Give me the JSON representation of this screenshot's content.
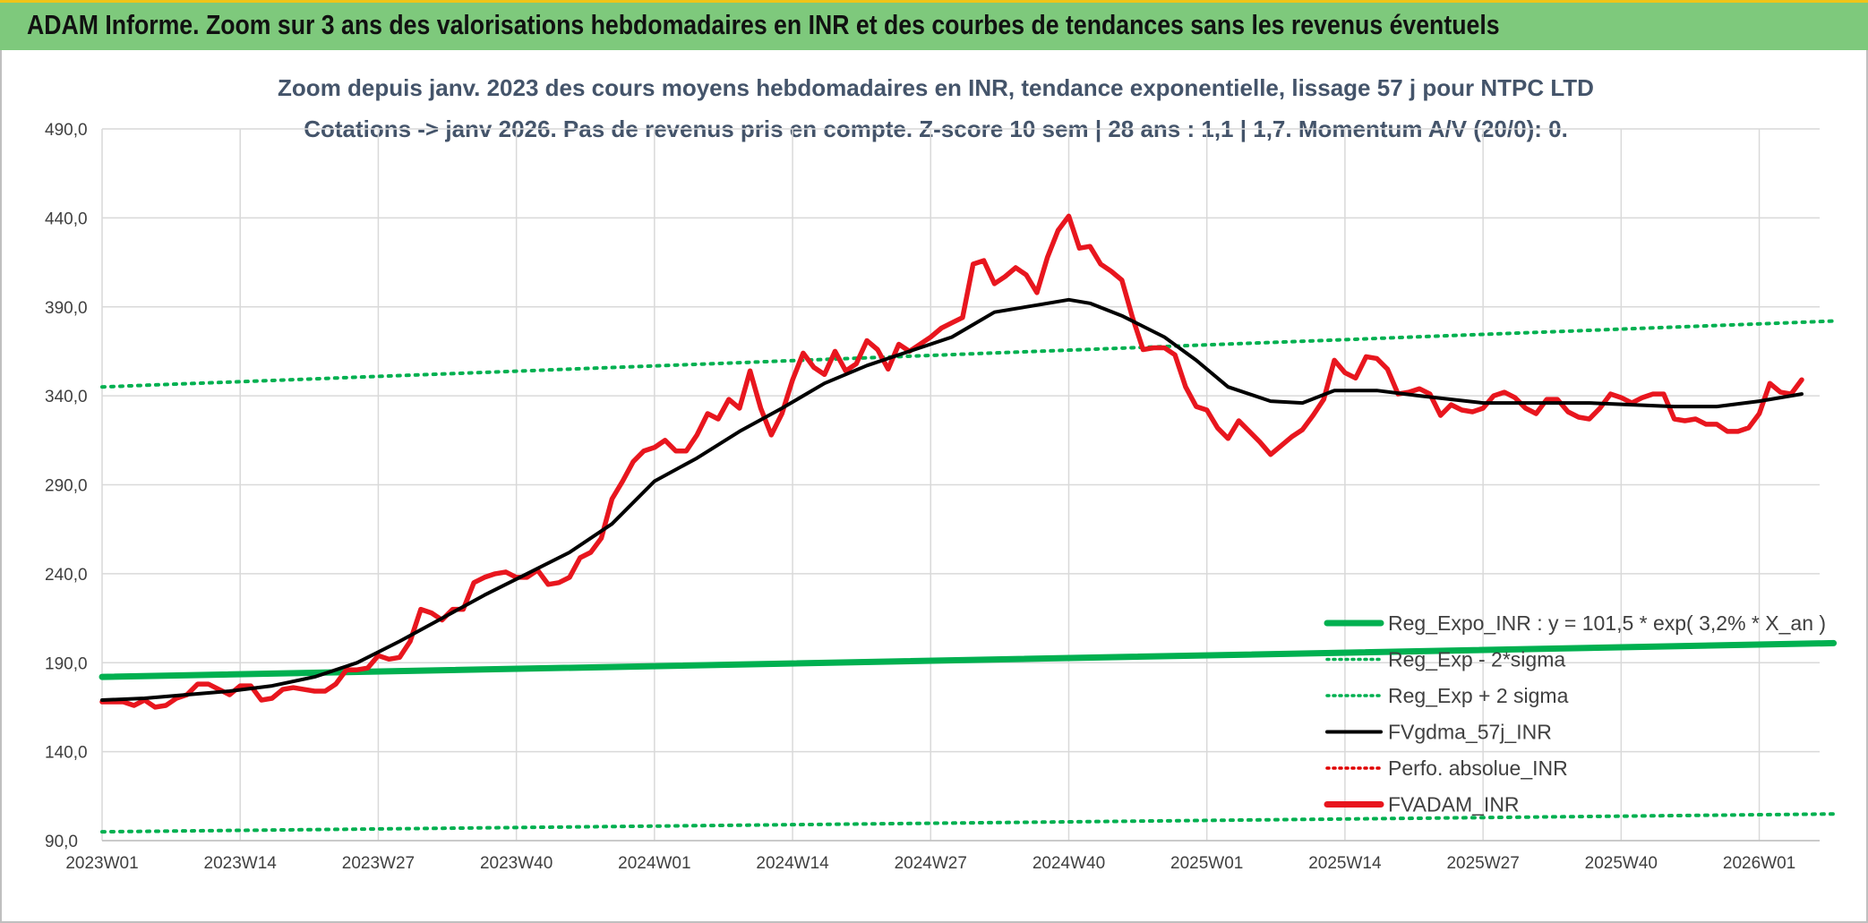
{
  "header": {
    "title": "ADAM Informe. Zoom sur 3 ans des valorisations hebdomadaires en INR et des courbes de tendances sans les revenus éventuels"
  },
  "chart_data": {
    "type": "line",
    "title_line1": "Zoom depuis janv. 2023 des cours moyens hebdomadaires en INR, tendance exponentielle, lissage 57 j pour NTPC LTD",
    "title_line2": "Cotations -> janv 2026. Pas de revenus pris en compte. Z-score 10 sem | 28 ans : 1,1  | 1,7. Momentum A/V (20/0): 0.",
    "ylim": [
      90,
      490
    ],
    "y_ticks": [
      "490,0",
      "440,0",
      "390,0",
      "340,0",
      "290,0",
      "240,0",
      "190,0",
      "140,0",
      "90,0"
    ],
    "y_tick_values": [
      490,
      440,
      390,
      340,
      290,
      240,
      190,
      140,
      90
    ],
    "x_range": [
      0,
      163
    ],
    "x_ticks": [
      "2023W01",
      "2023W14",
      "2023W27",
      "2023W40",
      "2024W01",
      "2024W14",
      "2024W27",
      "2024W40",
      "2025W01",
      "2025W14",
      "2025W27",
      "2025W40",
      "2026W01"
    ],
    "x_tick_positions": [
      0,
      13,
      26,
      39,
      52,
      65,
      78,
      91,
      104,
      117,
      130,
      143,
      156
    ],
    "legend": [
      {
        "label": "Reg_Expo_INR : y = 101,5 * exp( 3,2% *  X_an )",
        "color": "#00b050",
        "style": "solid-thick"
      },
      {
        "label": "Reg_Exp - 2*sigma",
        "color": "#00b050",
        "style": "dotted"
      },
      {
        "label": "Reg_Exp + 2 sigma",
        "color": "#00b050",
        "style": "dotted"
      },
      {
        "label": "FVgdma_57j_INR",
        "color": "#000000",
        "style": "solid"
      },
      {
        "label": "Perfo. absolue_INR",
        "color": "#e00000",
        "style": "dotted"
      },
      {
        "label": "FVADAM_INR",
        "color": "#e8161e",
        "style": "solid-thick"
      }
    ],
    "series": [
      {
        "name": "Reg_Expo_INR",
        "color": "#00b050",
        "points": [
          [
            0,
            182
          ],
          [
            163,
            201
          ]
        ]
      },
      {
        "name": "Reg_Exp - 2*sigma",
        "color": "#00b050",
        "points": [
          [
            0,
            95
          ],
          [
            163,
            105
          ]
        ]
      },
      {
        "name": "Reg_Exp + 2 sigma",
        "color": "#00b050",
        "points": [
          [
            0,
            345
          ],
          [
            163,
            382
          ]
        ]
      },
      {
        "name": "FVgdma_57j_INR",
        "color": "#000000",
        "points": [
          [
            0,
            169
          ],
          [
            4,
            170
          ],
          [
            8,
            172
          ],
          [
            12,
            174
          ],
          [
            16,
            177
          ],
          [
            20,
            182
          ],
          [
            24,
            190
          ],
          [
            28,
            202
          ],
          [
            32,
            215
          ],
          [
            36,
            228
          ],
          [
            40,
            240
          ],
          [
            44,
            252
          ],
          [
            48,
            268
          ],
          [
            52,
            292
          ],
          [
            56,
            305
          ],
          [
            60,
            320
          ],
          [
            64,
            333
          ],
          [
            68,
            347
          ],
          [
            72,
            357
          ],
          [
            76,
            365
          ],
          [
            80,
            373
          ],
          [
            82,
            380
          ],
          [
            84,
            387
          ],
          [
            88,
            391
          ],
          [
            91,
            394
          ],
          [
            93,
            392
          ],
          [
            96,
            385
          ],
          [
            100,
            373
          ],
          [
            103,
            360
          ],
          [
            106,
            345
          ],
          [
            110,
            337
          ],
          [
            113,
            336
          ],
          [
            116,
            343
          ],
          [
            120,
            343
          ],
          [
            124,
            340
          ],
          [
            130,
            336
          ],
          [
            136,
            336
          ],
          [
            140,
            336
          ],
          [
            144,
            335
          ],
          [
            148,
            334
          ],
          [
            152,
            334
          ],
          [
            156,
            337
          ],
          [
            160,
            341
          ]
        ]
      },
      {
        "name": "FVADAM_INR",
        "color": "#e8161e",
        "points": [
          [
            0,
            168
          ],
          [
            1,
            168
          ],
          [
            2,
            168
          ],
          [
            3,
            166
          ],
          [
            4,
            169
          ],
          [
            5,
            165
          ],
          [
            6,
            166
          ],
          [
            7,
            170
          ],
          [
            8,
            172
          ],
          [
            9,
            178
          ],
          [
            10,
            178
          ],
          [
            11,
            175
          ],
          [
            12,
            172
          ],
          [
            13,
            177
          ],
          [
            14,
            177
          ],
          [
            15,
            169
          ],
          [
            16,
            170
          ],
          [
            17,
            175
          ],
          [
            18,
            176
          ],
          [
            19,
            175
          ],
          [
            20,
            174
          ],
          [
            21,
            174
          ],
          [
            22,
            178
          ],
          [
            23,
            186
          ],
          [
            24,
            186
          ],
          [
            25,
            187
          ],
          [
            26,
            194
          ],
          [
            27,
            192
          ],
          [
            28,
            193
          ],
          [
            29,
            202
          ],
          [
            30,
            220
          ],
          [
            31,
            218
          ],
          [
            32,
            214
          ],
          [
            33,
            220
          ],
          [
            34,
            220
          ],
          [
            35,
            235
          ],
          [
            36,
            238
          ],
          [
            37,
            240
          ],
          [
            38,
            241
          ],
          [
            39,
            238
          ],
          [
            40,
            238
          ],
          [
            41,
            242
          ],
          [
            42,
            234
          ],
          [
            43,
            235
          ],
          [
            44,
            238
          ],
          [
            45,
            249
          ],
          [
            46,
            252
          ],
          [
            47,
            260
          ],
          [
            48,
            282
          ],
          [
            49,
            292
          ],
          [
            50,
            303
          ],
          [
            51,
            309
          ],
          [
            52,
            311
          ],
          [
            53,
            315
          ],
          [
            54,
            309
          ],
          [
            55,
            309
          ],
          [
            56,
            318
          ],
          [
            57,
            330
          ],
          [
            58,
            327
          ],
          [
            59,
            338
          ],
          [
            60,
            333
          ],
          [
            61,
            354
          ],
          [
            62,
            333
          ],
          [
            63,
            318
          ],
          [
            64,
            330
          ],
          [
            65,
            349
          ],
          [
            66,
            364
          ],
          [
            67,
            356
          ],
          [
            68,
            352
          ],
          [
            69,
            365
          ],
          [
            70,
            354
          ],
          [
            71,
            358
          ],
          [
            72,
            371
          ],
          [
            73,
            366
          ],
          [
            74,
            355
          ],
          [
            75,
            369
          ],
          [
            76,
            365
          ],
          [
            77,
            369
          ],
          [
            78,
            373
          ],
          [
            79,
            378
          ],
          [
            80,
            381
          ],
          [
            81,
            384
          ],
          [
            82,
            414
          ],
          [
            83,
            416
          ],
          [
            84,
            403
          ],
          [
            85,
            407
          ],
          [
            86,
            412
          ],
          [
            87,
            408
          ],
          [
            88,
            398
          ],
          [
            89,
            418
          ],
          [
            90,
            433
          ],
          [
            91,
            441
          ],
          [
            92,
            423
          ],
          [
            93,
            424
          ],
          [
            94,
            414
          ],
          [
            95,
            410
          ],
          [
            96,
            405
          ],
          [
            97,
            384
          ],
          [
            98,
            366
          ],
          [
            99,
            367
          ],
          [
            100,
            367
          ],
          [
            101,
            363
          ],
          [
            102,
            345
          ],
          [
            103,
            334
          ],
          [
            104,
            332
          ],
          [
            105,
            322
          ],
          [
            106,
            316
          ],
          [
            107,
            326
          ],
          [
            108,
            320
          ],
          [
            109,
            314
          ],
          [
            110,
            307
          ],
          [
            111,
            312
          ],
          [
            112,
            317
          ],
          [
            113,
            321
          ],
          [
            114,
            329
          ],
          [
            115,
            338
          ],
          [
            116,
            360
          ],
          [
            117,
            353
          ],
          [
            118,
            350
          ],
          [
            119,
            362
          ],
          [
            120,
            361
          ],
          [
            121,
            355
          ],
          [
            122,
            341
          ],
          [
            123,
            342
          ],
          [
            124,
            344
          ],
          [
            125,
            341
          ],
          [
            126,
            329
          ],
          [
            127,
            335
          ],
          [
            128,
            332
          ],
          [
            129,
            331
          ],
          [
            130,
            333
          ],
          [
            131,
            340
          ],
          [
            132,
            342
          ],
          [
            133,
            339
          ],
          [
            134,
            333
          ],
          [
            135,
            330
          ],
          [
            136,
            338
          ],
          [
            137,
            338
          ],
          [
            138,
            331
          ],
          [
            139,
            328
          ],
          [
            140,
            327
          ],
          [
            141,
            333
          ],
          [
            142,
            341
          ],
          [
            143,
            339
          ],
          [
            144,
            336
          ],
          [
            145,
            339
          ],
          [
            146,
            341
          ],
          [
            147,
            341
          ],
          [
            148,
            327
          ],
          [
            149,
            326
          ],
          [
            150,
            327
          ],
          [
            151,
            324
          ],
          [
            152,
            324
          ],
          [
            153,
            320
          ],
          [
            154,
            320
          ],
          [
            155,
            322
          ],
          [
            156,
            330
          ],
          [
            157,
            347
          ],
          [
            158,
            342
          ],
          [
            159,
            341
          ],
          [
            160,
            349
          ]
        ]
      }
    ]
  }
}
